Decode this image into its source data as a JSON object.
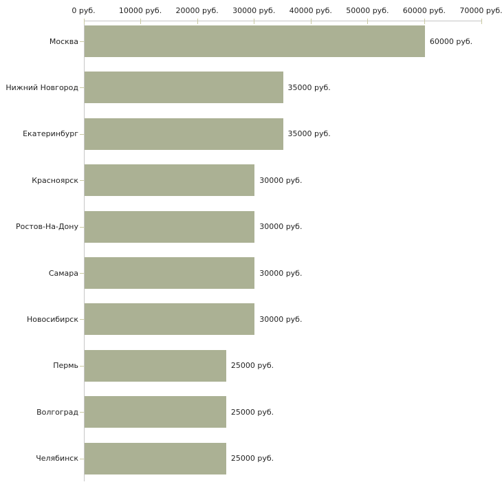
{
  "chart_data": {
    "type": "bar",
    "orientation": "horizontal",
    "title": "",
    "xlabel": "",
    "ylabel": "",
    "categories": [
      "Москва",
      "Нижний Новгород",
      "Екатеринбург",
      "Красноярск",
      "Ростов-На-Дону",
      "Самара",
      "Новосибирск",
      "Пермь",
      "Волгоград",
      "Челябинск"
    ],
    "values": [
      60000,
      35000,
      35000,
      30000,
      30000,
      30000,
      30000,
      25000,
      25000,
      25000
    ],
    "value_labels": [
      "60000 руб.",
      "35000 руб.",
      "35000 руб.",
      "30000 руб.",
      "30000 руб.",
      "30000 руб.",
      "30000 руб.",
      "25000 руб.",
      "25000 руб.",
      "25000 руб."
    ],
    "x_tick_labels": [
      "0 руб.",
      "10000 руб.",
      "20000 руб.",
      "30000 руб.",
      "40000 руб.",
      "50000 руб.",
      "60000 руб.",
      "70000 руб."
    ],
    "x_tick_values": [
      0,
      10000,
      20000,
      30000,
      40000,
      50000,
      60000,
      70000
    ],
    "xlim": [
      0,
      70000
    ],
    "grid": false,
    "legend": "none",
    "colors": {
      "bar_fill": "#abb194",
      "axis_line": "#c6c6c6",
      "tick_mark": "#c9c9a0",
      "text": "#1f1f1f",
      "background": "#ffffff"
    }
  }
}
